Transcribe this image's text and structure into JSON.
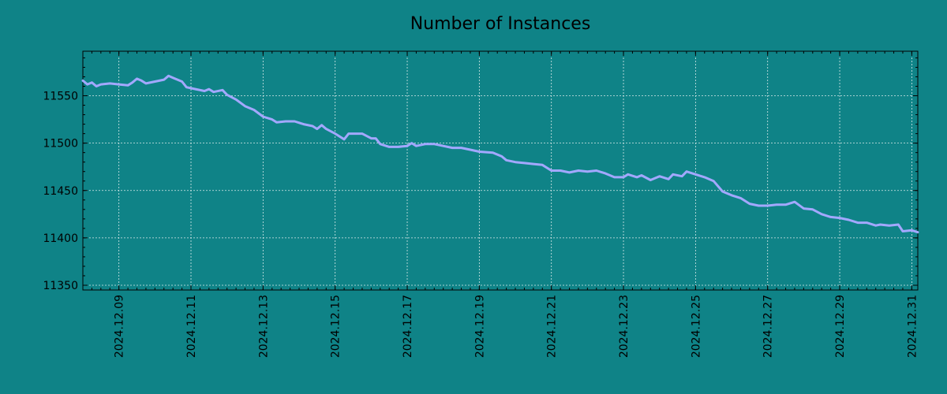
{
  "chart_data": {
    "type": "line",
    "title": "Number of Instances",
    "xlabel": "",
    "ylabel": "",
    "x_range": [
      "2024-12-08T00:00",
      "2024-12-31T04:00"
    ],
    "ylim": [
      11345,
      11597
    ],
    "y_ticks": [
      11350,
      11400,
      11450,
      11500,
      11550
    ],
    "x_ticks": [
      "2024.12.09",
      "2024.12.11",
      "2024.12.13",
      "2024.12.15",
      "2024.12.17",
      "2024.12.19",
      "2024.12.21",
      "2024.12.23",
      "2024.12.25",
      "2024.12.27",
      "2024.12.29",
      "2024.12.31"
    ],
    "grid": true,
    "legend": "none",
    "colors": {
      "background": "#0f8387",
      "line": "#a3a8ff",
      "grid": "#d9eaea"
    },
    "series": [
      {
        "points": [
          [
            "2024-12-08T00:00",
            11566
          ],
          [
            "2024-12-08T03:00",
            11562
          ],
          [
            "2024-12-08T06:00",
            11564
          ],
          [
            "2024-12-08T09:00",
            11560
          ],
          [
            "2024-12-08T12:00",
            11562
          ],
          [
            "2024-12-08T18:00",
            11563
          ],
          [
            "2024-12-09T00:00",
            11562
          ],
          [
            "2024-12-09T06:00",
            11561
          ],
          [
            "2024-12-09T09:00",
            11564
          ],
          [
            "2024-12-09T12:00",
            11568
          ],
          [
            "2024-12-09T15:00",
            11566
          ],
          [
            "2024-12-09T18:00",
            11563
          ],
          [
            "2024-12-10T00:00",
            11565
          ],
          [
            "2024-12-10T06:00",
            11567
          ],
          [
            "2024-12-10T09:00",
            11571
          ],
          [
            "2024-12-10T12:00",
            11569
          ],
          [
            "2024-12-10T18:00",
            11565
          ],
          [
            "2024-12-10T21:00",
            11559
          ],
          [
            "2024-12-11T03:00",
            11557
          ],
          [
            "2024-12-11T09:00",
            11555
          ],
          [
            "2024-12-11T12:00",
            11557
          ],
          [
            "2024-12-11T15:00",
            11554
          ],
          [
            "2024-12-11T21:00",
            11556
          ],
          [
            "2024-12-12T00:00",
            11551
          ],
          [
            "2024-12-12T06:00",
            11546
          ],
          [
            "2024-12-12T12:00",
            11539
          ],
          [
            "2024-12-12T18:00",
            11535
          ],
          [
            "2024-12-13T00:00",
            11528
          ],
          [
            "2024-12-13T06:00",
            11525
          ],
          [
            "2024-12-13T09:00",
            11522
          ],
          [
            "2024-12-13T15:00",
            11523
          ],
          [
            "2024-12-13T21:00",
            11523
          ],
          [
            "2024-12-14T03:00",
            11520
          ],
          [
            "2024-12-14T09:00",
            11518
          ],
          [
            "2024-12-14T12:00",
            11515
          ],
          [
            "2024-12-14T15:00",
            11519
          ],
          [
            "2024-12-14T18:00",
            11515
          ],
          [
            "2024-12-15T00:00",
            11510
          ],
          [
            "2024-12-15T06:00",
            11504
          ],
          [
            "2024-12-15T09:00",
            11510
          ],
          [
            "2024-12-15T18:00",
            11510
          ],
          [
            "2024-12-16T00:00",
            11505
          ],
          [
            "2024-12-16T03:00",
            11505
          ],
          [
            "2024-12-16T06:00",
            11499
          ],
          [
            "2024-12-16T12:00",
            11496
          ],
          [
            "2024-12-16T18:00",
            11496
          ],
          [
            "2024-12-17T00:00",
            11497
          ],
          [
            "2024-12-17T03:00",
            11500
          ],
          [
            "2024-12-17T06:00",
            11497
          ],
          [
            "2024-12-17T12:00",
            11499
          ],
          [
            "2024-12-17T18:00",
            11499
          ],
          [
            "2024-12-18T00:00",
            11497
          ],
          [
            "2024-12-18T06:00",
            11495
          ],
          [
            "2024-12-18T12:00",
            11495
          ],
          [
            "2024-12-18T18:00",
            11493
          ],
          [
            "2024-12-19T00:00",
            11491
          ],
          [
            "2024-12-19T09:00",
            11490
          ],
          [
            "2024-12-19T15:00",
            11486
          ],
          [
            "2024-12-19T18:00",
            11482
          ],
          [
            "2024-12-20T00:00",
            11480
          ],
          [
            "2024-12-20T06:00",
            11479
          ],
          [
            "2024-12-20T12:00",
            11478
          ],
          [
            "2024-12-20T18:00",
            11477
          ],
          [
            "2024-12-21T00:00",
            11471
          ],
          [
            "2024-12-21T06:00",
            11471
          ],
          [
            "2024-12-21T12:00",
            11469
          ],
          [
            "2024-12-21T18:00",
            11471
          ],
          [
            "2024-12-22T00:00",
            11470
          ],
          [
            "2024-12-22T06:00",
            11471
          ],
          [
            "2024-12-22T12:00",
            11468
          ],
          [
            "2024-12-22T18:00",
            11464
          ],
          [
            "2024-12-23T00:00",
            11464
          ],
          [
            "2024-12-23T03:00",
            11467
          ],
          [
            "2024-12-23T09:00",
            11464
          ],
          [
            "2024-12-23T12:00",
            11466
          ],
          [
            "2024-12-23T18:00",
            11461
          ],
          [
            "2024-12-24T00:00",
            11465
          ],
          [
            "2024-12-24T06:00",
            11462
          ],
          [
            "2024-12-24T09:00",
            11467
          ],
          [
            "2024-12-24T15:00",
            11465
          ],
          [
            "2024-12-24T18:00",
            11470
          ],
          [
            "2024-12-25T00:00",
            11467
          ],
          [
            "2024-12-25T06:00",
            11464
          ],
          [
            "2024-12-25T12:00",
            11460
          ],
          [
            "2024-12-25T18:00",
            11449
          ],
          [
            "2024-12-26T00:00",
            11445
          ],
          [
            "2024-12-26T06:00",
            11442
          ],
          [
            "2024-12-26T12:00",
            11436
          ],
          [
            "2024-12-26T18:00",
            11434
          ],
          [
            "2024-12-27T00:00",
            11434
          ],
          [
            "2024-12-27T06:00",
            11435
          ],
          [
            "2024-12-27T12:00",
            11435
          ],
          [
            "2024-12-27T18:00",
            11438
          ],
          [
            "2024-12-28T00:00",
            11431
          ],
          [
            "2024-12-28T06:00",
            11430
          ],
          [
            "2024-12-28T12:00",
            11425
          ],
          [
            "2024-12-28T18:00",
            11422
          ],
          [
            "2024-12-29T00:00",
            11421
          ],
          [
            "2024-12-29T06:00",
            11419
          ],
          [
            "2024-12-29T12:00",
            11416
          ],
          [
            "2024-12-29T18:00",
            11416
          ],
          [
            "2024-12-30T00:00",
            11413
          ],
          [
            "2024-12-30T03:00",
            11414
          ],
          [
            "2024-12-30T09:00",
            11413
          ],
          [
            "2024-12-30T15:00",
            11414
          ],
          [
            "2024-12-30T18:00",
            11407
          ],
          [
            "2024-12-31T00:00",
            11408
          ],
          [
            "2024-12-31T04:00",
            11406
          ]
        ]
      }
    ]
  }
}
